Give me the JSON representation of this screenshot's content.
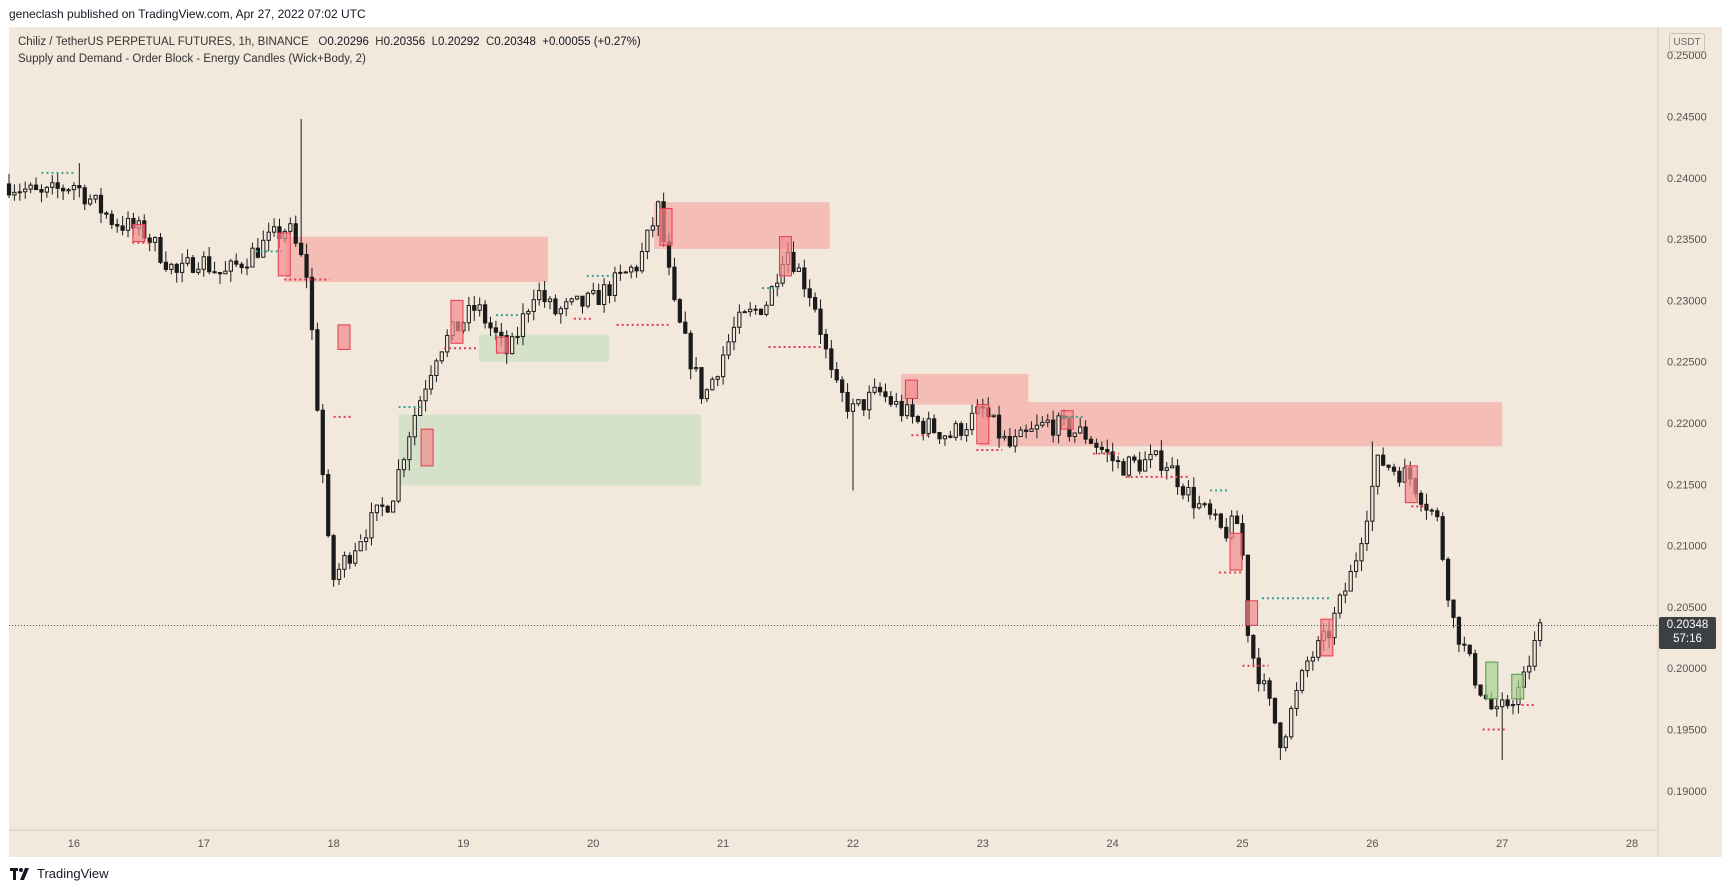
{
  "header": {
    "published": "geneclash published on TradingView.com, Apr 27, 2022 07:02 UTC"
  },
  "legend": {
    "symbol": "Chiliz / TetherUS PERPETUAL FUTURES, 1h, BINANCE",
    "o_label": "O",
    "o_value": "0.20296",
    "h_label": "H",
    "h_value": "0.20356",
    "l_label": "L",
    "l_value": "0.20292",
    "c_label": "C",
    "c_value": "0.20348",
    "change": "+0.00055 (+0.27%)",
    "indicator": "Supply and Demand - Order Block - Energy Candles (Wick+Body, 2)"
  },
  "currency": "USDT",
  "last_price": {
    "value": "0.20348",
    "countdown": "57:16"
  },
  "footer": {
    "brand": "TradingView"
  },
  "colors": {
    "background": "#f2e8dc",
    "supply_zone": "#f4b9b3",
    "demand_zone": "#d3e0c6",
    "candle": "#1b1b1b",
    "bear_level": "#e53950",
    "bull_level": "#3aa38f",
    "bear_candle_fill": "#f28b8b",
    "bull_candle_fill": "#a9d18e"
  },
  "chart_data": {
    "type": "candlestick",
    "title": "Chiliz / TetherUS PERPETUAL FUTURES, 1h, BINANCE",
    "ylim": [
      0.1868,
      0.2523
    ],
    "yticks": [
      "0.25000",
      "0.24500",
      "0.24000",
      "0.23500",
      "0.23000",
      "0.22500",
      "0.22000",
      "0.21500",
      "0.21000",
      "0.20500",
      "0.20000",
      "0.19500",
      "0.19000"
    ],
    "xlim": [
      15.5,
      28.2
    ],
    "xticks": [
      {
        "x": 16,
        "label": "16"
      },
      {
        "x": 17,
        "label": "17"
      },
      {
        "x": 18,
        "label": "18"
      },
      {
        "x": 19,
        "label": "19"
      },
      {
        "x": 20,
        "label": "20"
      },
      {
        "x": 21,
        "label": "21"
      },
      {
        "x": 22,
        "label": "22"
      },
      {
        "x": 23,
        "label": "23"
      },
      {
        "x": 24,
        "label": "24"
      },
      {
        "x": 25,
        "label": "25"
      },
      {
        "x": 26,
        "label": "26"
      },
      {
        "x": 27,
        "label": "27"
      },
      {
        "x": 28,
        "label": "28"
      }
    ],
    "price_path": [
      [
        15.5,
        0.2395
      ],
      [
        15.75,
        0.2385
      ],
      [
        16.0,
        0.2395
      ],
      [
        16.3,
        0.2365
      ],
      [
        16.55,
        0.2355
      ],
      [
        16.8,
        0.232
      ],
      [
        16.95,
        0.2335
      ],
      [
        17.15,
        0.232
      ],
      [
        17.45,
        0.2345
      ],
      [
        17.65,
        0.236
      ],
      [
        17.8,
        0.232
      ],
      [
        17.98,
        0.207
      ],
      [
        18.22,
        0.211
      ],
      [
        18.45,
        0.214
      ],
      [
        18.6,
        0.22
      ],
      [
        18.8,
        0.226
      ],
      [
        19.1,
        0.2295
      ],
      [
        19.35,
        0.2255
      ],
      [
        19.55,
        0.231
      ],
      [
        19.7,
        0.229
      ],
      [
        20.0,
        0.23
      ],
      [
        20.35,
        0.233
      ],
      [
        20.5,
        0.2375
      ],
      [
        20.63,
        0.229
      ],
      [
        20.85,
        0.222
      ],
      [
        21.1,
        0.228
      ],
      [
        21.35,
        0.23
      ],
      [
        21.48,
        0.2345
      ],
      [
        21.7,
        0.23
      ],
      [
        21.85,
        0.223
      ],
      [
        22.0,
        0.221
      ],
      [
        22.2,
        0.2225
      ],
      [
        22.5,
        0.22
      ],
      [
        22.75,
        0.219
      ],
      [
        23.0,
        0.221
      ],
      [
        23.2,
        0.218
      ],
      [
        23.5,
        0.22
      ],
      [
        23.8,
        0.219
      ],
      [
        24.05,
        0.2165
      ],
      [
        24.4,
        0.217
      ],
      [
        24.6,
        0.214
      ],
      [
        24.85,
        0.211
      ],
      [
        24.98,
        0.212
      ],
      [
        25.05,
        0.202
      ],
      [
        25.3,
        0.194
      ],
      [
        25.5,
        0.2005
      ],
      [
        25.65,
        0.2025
      ],
      [
        25.85,
        0.208
      ],
      [
        26.05,
        0.217
      ],
      [
        26.3,
        0.2155
      ],
      [
        26.5,
        0.212
      ],
      [
        26.62,
        0.204
      ],
      [
        26.8,
        0.199
      ],
      [
        26.95,
        0.196
      ],
      [
        27.15,
        0.1985
      ],
      [
        27.3,
        0.2035
      ]
    ],
    "wicks": [
      {
        "x": 17.75,
        "high": 0.2448
      },
      {
        "x": 18.2,
        "low": 0.2105
      },
      {
        "x": 25.3,
        "low": 0.1925
      },
      {
        "x": 26.0,
        "high": 0.2185
      },
      {
        "x": 27.0,
        "low": 0.1925
      },
      {
        "x": 22.0,
        "low": 0.2145
      },
      {
        "x": 16.05,
        "high": 0.2412
      }
    ],
    "supply_zones": [
      {
        "x1": 17.63,
        "x2": 19.65,
        "top": 0.2352,
        "bottom": 0.2315
      },
      {
        "x1": 20.47,
        "x2": 21.82,
        "top": 0.238,
        "bottom": 0.2342
      },
      {
        "x1": 22.37,
        "x2": 23.35,
        "top": 0.224,
        "bottom": 0.2215
      },
      {
        "x1": 22.97,
        "x2": 27.0,
        "top": 0.2217,
        "bottom": 0.2181
      }
    ],
    "demand_zones": [
      {
        "x1": 19.12,
        "x2": 20.12,
        "top": 0.2272,
        "bottom": 0.225
      },
      {
        "x1": 18.5,
        "x2": 20.83,
        "top": 0.2207,
        "bottom": 0.2149
      }
    ],
    "bear_levels": [
      {
        "x1": 16.45,
        "x2": 16.6,
        "y": 0.2347
      },
      {
        "x1": 17.62,
        "x2": 17.97,
        "y": 0.2317
      },
      {
        "x1": 18.0,
        "x2": 18.15,
        "y": 0.2205
      },
      {
        "x1": 18.85,
        "x2": 19.1,
        "y": 0.2261
      },
      {
        "x1": 19.85,
        "x2": 20.0,
        "y": 0.2285
      },
      {
        "x1": 20.18,
        "x2": 20.58,
        "y": 0.228
      },
      {
        "x1": 21.35,
        "x2": 21.75,
        "y": 0.2262
      },
      {
        "x1": 22.45,
        "x2": 22.6,
        "y": 0.219
      },
      {
        "x1": 22.95,
        "x2": 23.15,
        "y": 0.2178
      },
      {
        "x1": 23.85,
        "x2": 24.05,
        "y": 0.2175
      },
      {
        "x1": 24.1,
        "x2": 24.6,
        "y": 0.2156
      },
      {
        "x1": 24.82,
        "x2": 25.0,
        "y": 0.2078
      },
      {
        "x1": 25.0,
        "x2": 25.2,
        "y": 0.2002
      },
      {
        "x1": 26.3,
        "x2": 26.42,
        "y": 0.2132
      },
      {
        "x1": 26.85,
        "x2": 27.02,
        "y": 0.195
      },
      {
        "x1": 27.15,
        "x2": 27.26,
        "y": 0.197
      }
    ],
    "bull_levels": [
      {
        "x1": 15.75,
        "x2": 16.02,
        "y": 0.2404
      },
      {
        "x1": 17.4,
        "x2": 17.6,
        "y": 0.234
      },
      {
        "x1": 18.5,
        "x2": 18.68,
        "y": 0.2213
      },
      {
        "x1": 19.25,
        "x2": 19.42,
        "y": 0.2288
      },
      {
        "x1": 19.95,
        "x2": 20.15,
        "y": 0.232
      },
      {
        "x1": 21.3,
        "x2": 21.45,
        "y": 0.231
      },
      {
        "x1": 23.6,
        "x2": 23.78,
        "y": 0.2205
      },
      {
        "x1": 25.15,
        "x2": 25.68,
        "y": 0.2057
      },
      {
        "x1": 24.75,
        "x2": 24.9,
        "y": 0.2145
      }
    ],
    "energy_candles": [
      {
        "x": 16.5,
        "o": 0.2362,
        "c": 0.2348,
        "type": "bear"
      },
      {
        "x": 17.62,
        "o": 0.2355,
        "c": 0.232,
        "type": "bear"
      },
      {
        "x": 18.08,
        "o": 0.228,
        "c": 0.226,
        "type": "bear"
      },
      {
        "x": 18.72,
        "o": 0.2195,
        "c": 0.2165,
        "type": "bear"
      },
      {
        "x": 18.95,
        "o": 0.23,
        "c": 0.2265,
        "type": "bear"
      },
      {
        "x": 19.3,
        "o": 0.227,
        "c": 0.2257,
        "type": "bear"
      },
      {
        "x": 20.56,
        "o": 0.2375,
        "c": 0.2345,
        "type": "bear"
      },
      {
        "x": 21.48,
        "o": 0.2352,
        "c": 0.232,
        "type": "bear"
      },
      {
        "x": 22.45,
        "o": 0.2235,
        "c": 0.222,
        "type": "bear"
      },
      {
        "x": 23.0,
        "o": 0.2215,
        "c": 0.2183,
        "type": "bear"
      },
      {
        "x": 23.65,
        "o": 0.221,
        "c": 0.2195,
        "type": "bear"
      },
      {
        "x": 24.95,
        "o": 0.211,
        "c": 0.208,
        "type": "bear"
      },
      {
        "x": 25.07,
        "o": 0.2055,
        "c": 0.2035,
        "type": "bear"
      },
      {
        "x": 25.65,
        "o": 0.204,
        "c": 0.201,
        "type": "bear"
      },
      {
        "x": 26.3,
        "o": 0.2165,
        "c": 0.2135,
        "type": "bear"
      },
      {
        "x": 26.92,
        "o": 0.2005,
        "c": 0.1975,
        "type": "bull"
      },
      {
        "x": 27.12,
        "o": 0.1995,
        "c": 0.1975,
        "type": "bull"
      }
    ],
    "last_price": 0.20348
  }
}
